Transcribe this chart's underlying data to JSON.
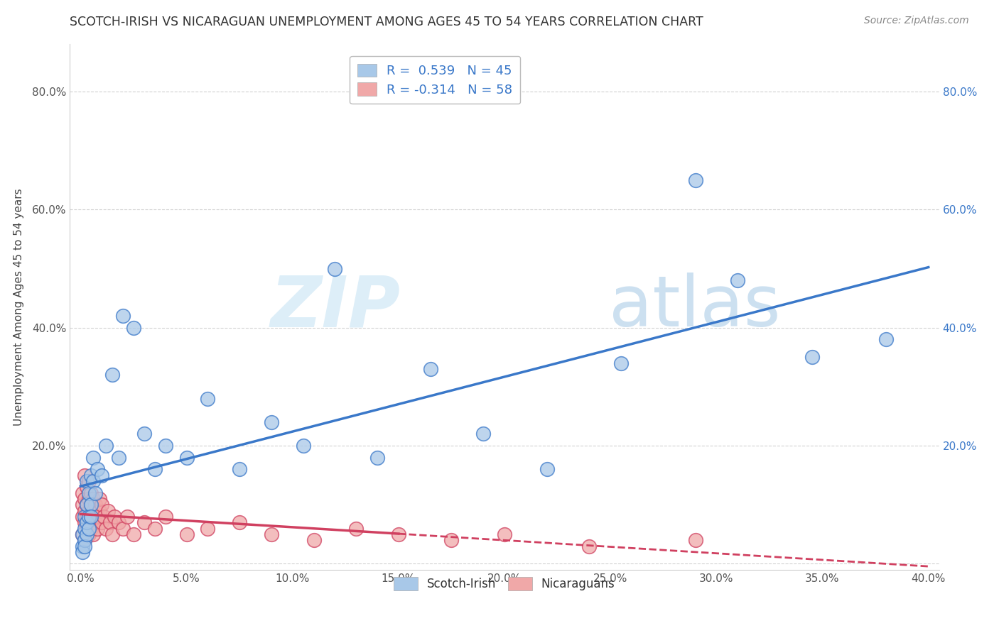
{
  "title": "SCOTCH-IRISH VS NICARAGUAN UNEMPLOYMENT AMONG AGES 45 TO 54 YEARS CORRELATION CHART",
  "source": "Source: ZipAtlas.com",
  "ylabel": "Unemployment Among Ages 45 to 54 years",
  "xlabel": "",
  "xlim": [
    -0.005,
    0.405
  ],
  "ylim": [
    -0.01,
    0.88
  ],
  "xticks": [
    0.0,
    0.05,
    0.1,
    0.15,
    0.2,
    0.25,
    0.3,
    0.35,
    0.4
  ],
  "xticklabels": [
    "0.0%",
    "5.0%",
    "10.0%",
    "15.0%",
    "20.0%",
    "25.0%",
    "30.0%",
    "35.0%",
    "40.0%"
  ],
  "yticks": [
    0.0,
    0.2,
    0.4,
    0.6,
    0.8
  ],
  "yticklabels_left": [
    "",
    "20.0%",
    "40.0%",
    "60.0%",
    "80.0%"
  ],
  "yticklabels_right": [
    "",
    "20.0%",
    "40.0%",
    "60.0%",
    "80.0%"
  ],
  "scotch_irish_R": 0.539,
  "scotch_irish_N": 45,
  "nicaraguan_R": -0.314,
  "nicaraguan_N": 58,
  "scotch_irish_color": "#a8c8e8",
  "nicaraguan_color": "#f0a8a8",
  "scotch_irish_line_color": "#3a78c9",
  "nicaraguan_line_color": "#d04060",
  "background_color": "#ffffff",
  "watermark_zip": "ZIP",
  "watermark_atlas": "atlas",
  "watermark_color": "#ddeeff",
  "legend_label_1": "Scotch-Irish",
  "legend_label_2": "Nicaraguans",
  "scotch_irish_x": [
    0.001,
    0.001,
    0.001,
    0.002,
    0.002,
    0.002,
    0.002,
    0.003,
    0.003,
    0.003,
    0.003,
    0.004,
    0.004,
    0.004,
    0.005,
    0.005,
    0.005,
    0.006,
    0.006,
    0.007,
    0.008,
    0.01,
    0.012,
    0.015,
    0.018,
    0.02,
    0.025,
    0.03,
    0.035,
    0.04,
    0.05,
    0.06,
    0.075,
    0.09,
    0.105,
    0.12,
    0.14,
    0.165,
    0.19,
    0.22,
    0.255,
    0.29,
    0.31,
    0.345,
    0.38
  ],
  "scotch_irish_y": [
    0.03,
    0.05,
    0.02,
    0.06,
    0.04,
    0.08,
    0.03,
    0.1,
    0.05,
    0.07,
    0.14,
    0.08,
    0.12,
    0.06,
    0.15,
    0.1,
    0.08,
    0.14,
    0.18,
    0.12,
    0.16,
    0.15,
    0.2,
    0.32,
    0.18,
    0.42,
    0.4,
    0.22,
    0.16,
    0.2,
    0.18,
    0.28,
    0.16,
    0.24,
    0.2,
    0.5,
    0.18,
    0.33,
    0.22,
    0.16,
    0.34,
    0.65,
    0.48,
    0.35,
    0.38
  ],
  "nicaraguan_x": [
    0.001,
    0.001,
    0.001,
    0.001,
    0.002,
    0.002,
    0.002,
    0.002,
    0.002,
    0.003,
    0.003,
    0.003,
    0.003,
    0.003,
    0.004,
    0.004,
    0.004,
    0.004,
    0.005,
    0.005,
    0.005,
    0.005,
    0.005,
    0.006,
    0.006,
    0.006,
    0.007,
    0.007,
    0.008,
    0.008,
    0.009,
    0.009,
    0.01,
    0.01,
    0.011,
    0.012,
    0.013,
    0.014,
    0.015,
    0.016,
    0.018,
    0.02,
    0.022,
    0.025,
    0.03,
    0.035,
    0.04,
    0.05,
    0.06,
    0.075,
    0.09,
    0.11,
    0.13,
    0.15,
    0.175,
    0.2,
    0.24,
    0.29
  ],
  "nicaraguan_y": [
    0.05,
    0.08,
    0.1,
    0.12,
    0.04,
    0.07,
    0.09,
    0.11,
    0.15,
    0.06,
    0.08,
    0.1,
    0.13,
    0.07,
    0.05,
    0.09,
    0.11,
    0.14,
    0.06,
    0.08,
    0.1,
    0.12,
    0.07,
    0.05,
    0.09,
    0.11,
    0.07,
    0.1,
    0.06,
    0.08,
    0.09,
    0.11,
    0.07,
    0.1,
    0.08,
    0.06,
    0.09,
    0.07,
    0.05,
    0.08,
    0.07,
    0.06,
    0.08,
    0.05,
    0.07,
    0.06,
    0.08,
    0.05,
    0.06,
    0.07,
    0.05,
    0.04,
    0.06,
    0.05,
    0.04,
    0.05,
    0.03,
    0.04
  ]
}
